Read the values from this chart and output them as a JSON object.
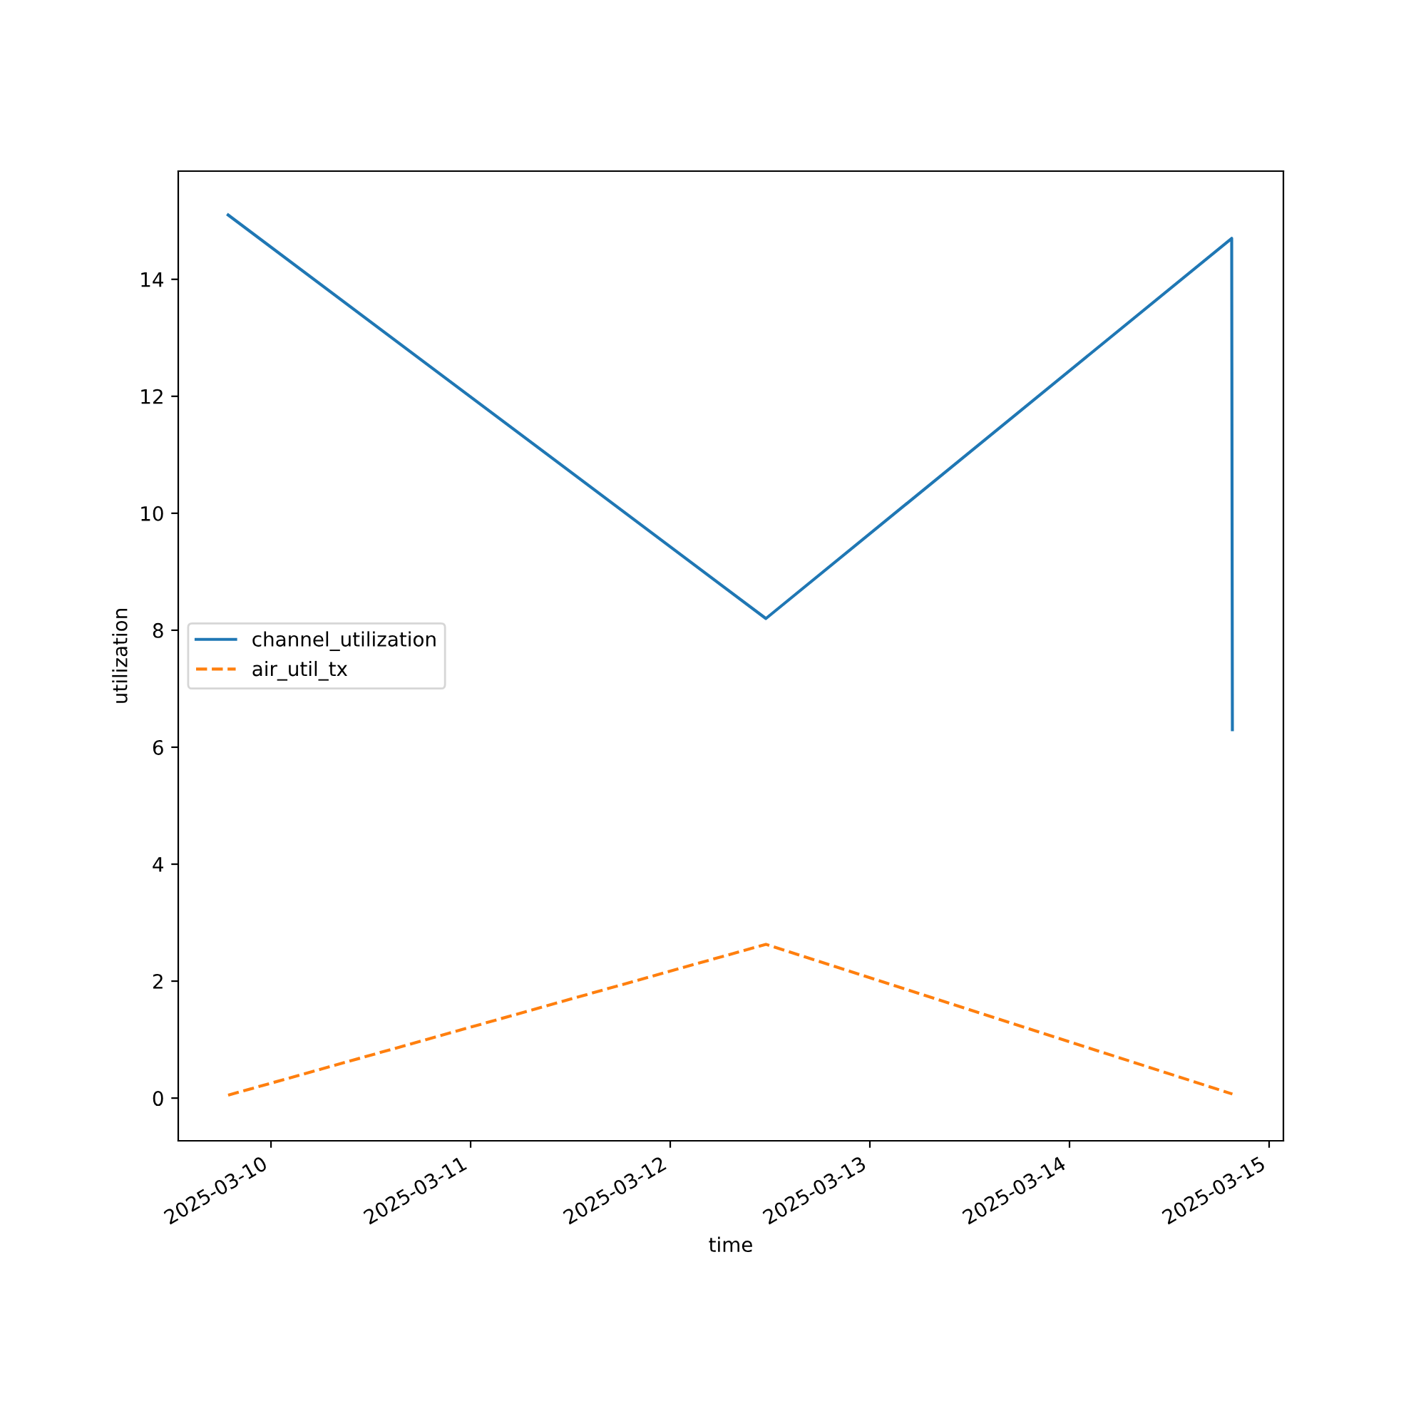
{
  "chart_data": {
    "type": "line",
    "xlabel": "time",
    "ylabel": "utilization",
    "xlim": [
      "2025-03-09T12:51",
      "2025-03-15T01:43"
    ],
    "ylim": [
      -0.73,
      15.85
    ],
    "xticks": [
      "2025-03-10",
      "2025-03-11",
      "2025-03-12",
      "2025-03-13",
      "2025-03-14",
      "2025-03-15"
    ],
    "yticks": [
      0,
      2,
      4,
      6,
      8,
      10,
      12,
      14
    ],
    "legend": "left",
    "grid": false,
    "series": [
      {
        "name": "channel_utilization",
        "color": "#1f77b4",
        "line_style": "solid",
        "x": [
          "2025-03-09T18:51",
          "2025-03-12T11:30",
          "2025-03-14T19:30",
          "2025-03-14T19:35"
        ],
        "values": [
          15.1,
          8.2,
          14.7,
          6.3
        ]
      },
      {
        "name": "air_util_tx",
        "color": "#ff7f0e",
        "line_style": "dashed",
        "x": [
          "2025-03-09T18:51",
          "2025-03-12T11:30",
          "2025-03-14T19:35"
        ],
        "values": [
          0.05,
          2.63,
          0.07
        ]
      }
    ]
  }
}
